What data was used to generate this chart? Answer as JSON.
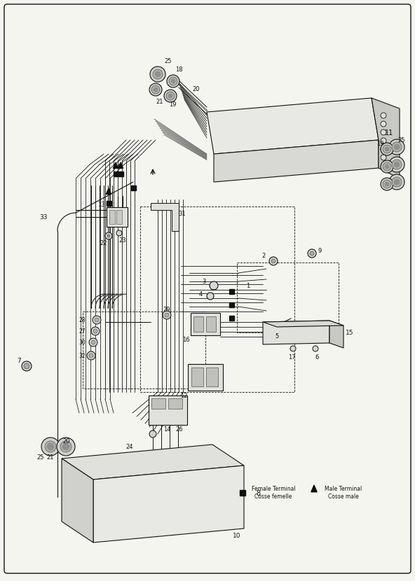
{
  "background_color": "#f5f5f0",
  "line_color": "#111111",
  "legend_female": "Female Terminal\nCosse femelle",
  "legend_male": "Male Terminal\nCosse male",
  "figsize": [
    5.92,
    8.3
  ],
  "dpi": 100
}
